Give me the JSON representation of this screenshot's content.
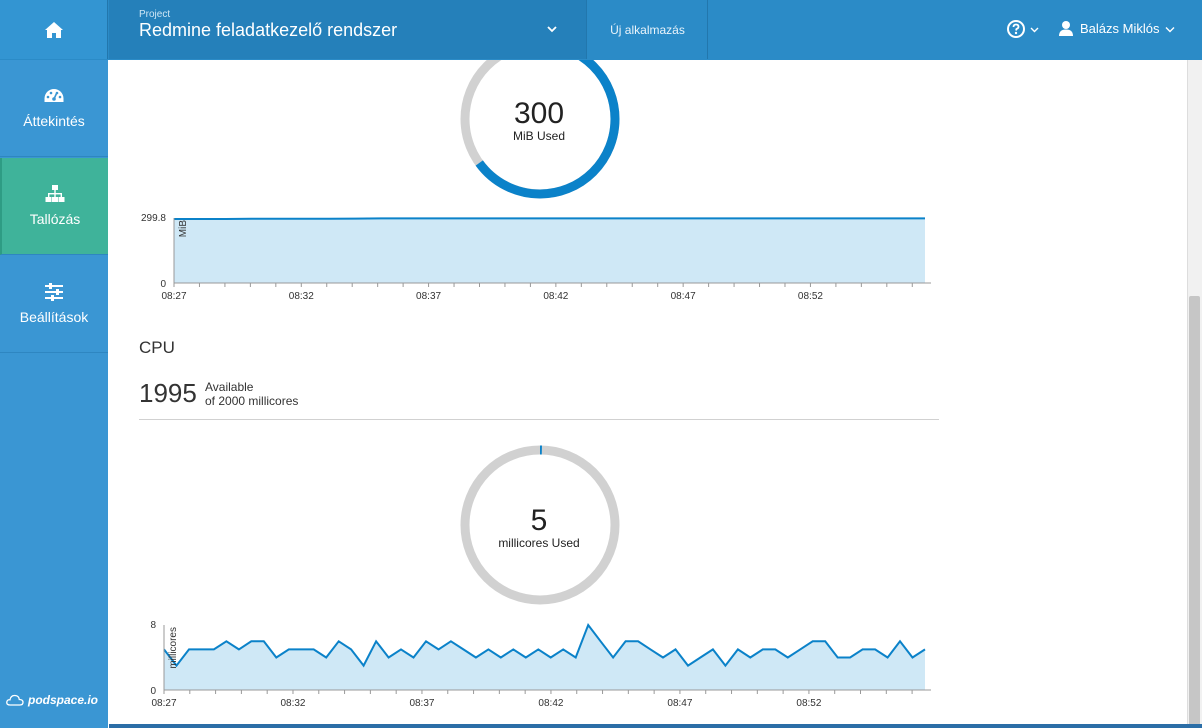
{
  "header": {
    "project_caption": "Project",
    "project_name": "Redmine feladatkezelő rendszer",
    "new_app_label": "Új alkalmazás",
    "user_name": "Balázs Miklós"
  },
  "sidebar": {
    "items": [
      {
        "label": "Áttekintés",
        "icon": "dashboard-icon"
      },
      {
        "label": "Tallózás",
        "icon": "sitemap-icon",
        "active": true
      },
      {
        "label": "Beállítások",
        "icon": "sliders-icon"
      }
    ],
    "brand": "podspace.io"
  },
  "memory": {
    "donut_value": "300",
    "donut_label": "MiB Used",
    "used_fraction": 0.65,
    "chart_data": {
      "type": "area",
      "ylabel": "MiB",
      "ytick_max": "299.8",
      "ytick_min": "0",
      "ylim": [
        0,
        299.8
      ],
      "xticks": [
        "08:27",
        "08:32",
        "08:37",
        "08:42",
        "08:47",
        "08:52"
      ],
      "values": [
        295,
        295,
        295,
        296,
        296,
        296,
        296,
        297,
        298,
        298,
        298,
        298,
        298,
        298,
        298,
        298,
        298,
        298,
        298,
        298,
        298,
        298,
        298,
        298,
        298,
        298,
        298,
        298,
        298,
        298
      ]
    }
  },
  "cpu": {
    "title": "CPU",
    "available_value": "1995",
    "available_label": "Available",
    "available_of": "of 2000 millicores",
    "donut_value": "5",
    "donut_label": "millicores Used",
    "used_fraction": 0.0025,
    "chart_data": {
      "type": "area",
      "ylabel": "millicores",
      "ytick_max": "8",
      "ytick_min": "0",
      "ylim": [
        0,
        8
      ],
      "xticks": [
        "08:27",
        "08:32",
        "08:37",
        "08:42",
        "08:47",
        "08:52"
      ],
      "values": [
        5,
        3,
        5,
        5,
        5,
        6,
        5,
        6,
        6,
        4,
        5,
        5,
        5,
        4,
        6,
        5,
        3,
        6,
        4,
        5,
        4,
        6,
        5,
        6,
        5,
        4,
        5,
        4,
        5,
        4,
        5,
        4,
        5,
        4,
        8,
        6,
        4,
        6,
        6,
        5,
        4,
        5,
        3,
        4,
        5,
        3,
        5,
        4,
        5,
        5,
        4,
        5,
        6,
        6,
        4,
        4,
        5,
        5,
        4,
        6,
        4,
        5
      ]
    }
  },
  "colors": {
    "topbar": "#2b8bc7",
    "sidebar": "#3a96d3",
    "sidebar_active": "#3fb39a",
    "accent_line": "#0b82c9",
    "area_fill": "#cfe8f6",
    "donut_track": "#d1d1d1"
  }
}
